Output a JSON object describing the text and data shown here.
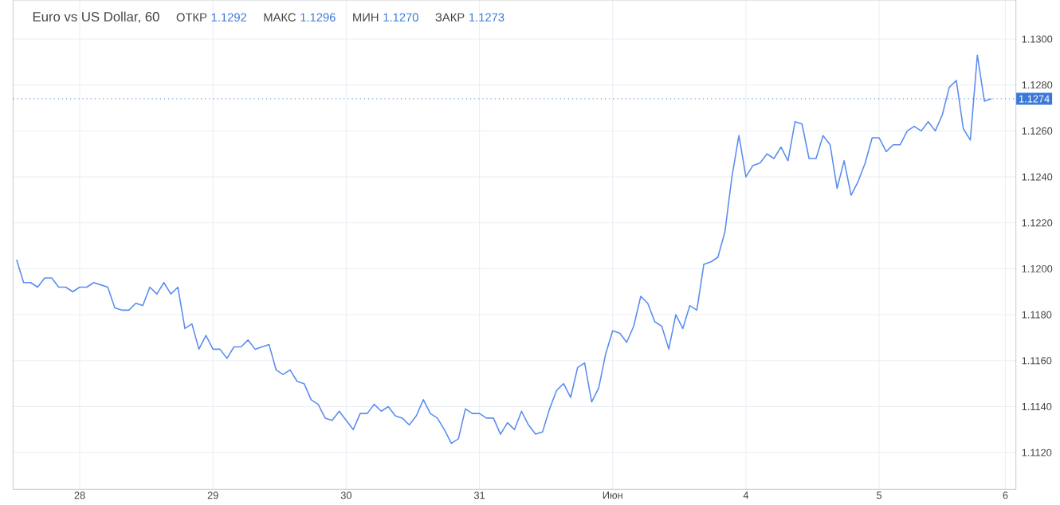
{
  "chart_data": {
    "type": "line",
    "title": "Euro vs US Dollar, 60",
    "annotations": [
      "ОТКР",
      "1.1292",
      "МАКС",
      "1.1296",
      "МИН",
      "1.1270",
      "ЗАКР",
      "1.1273"
    ],
    "categories": [
      null,
      null,
      null,
      null,
      null,
      null,
      null,
      null,
      null,
      "28",
      null,
      null,
      null,
      null,
      null,
      null,
      null,
      null,
      null,
      null,
      null,
      null,
      null,
      null,
      null,
      null,
      null,
      null,
      "29",
      null,
      null,
      null,
      null,
      null,
      null,
      null,
      null,
      null,
      null,
      null,
      null,
      null,
      null,
      null,
      null,
      null,
      null,
      "30",
      null,
      null,
      null,
      null,
      null,
      null,
      null,
      null,
      null,
      null,
      null,
      null,
      null,
      null,
      null,
      null,
      null,
      null,
      "31",
      null,
      null,
      null,
      null,
      null,
      null,
      null,
      null,
      null,
      null,
      null,
      null,
      null,
      null,
      null,
      null,
      null,
      null,
      "Июн",
      null,
      null,
      null,
      null,
      null,
      null,
      null,
      null,
      null,
      null,
      null,
      null,
      null,
      null,
      null,
      null,
      null,
      null,
      "4",
      null,
      null,
      null,
      null,
      null,
      null,
      null,
      null,
      null,
      null,
      null,
      null,
      null,
      null,
      null,
      null,
      null,
      null,
      "5",
      null,
      null,
      null,
      null,
      null,
      null,
      null,
      null,
      null,
      null,
      null,
      null,
      null,
      null,
      null,
      null,
      null,
      "6",
      null
    ],
    "series": [
      {
        "color": "#5b8def",
        "values": [
          1.1204,
          1.1194,
          1.1194,
          1.1192,
          1.1196,
          1.1196,
          1.1192,
          1.1192,
          1.119,
          1.1192,
          1.1192,
          1.1194,
          1.1193,
          1.1192,
          1.1183,
          1.1182,
          1.1182,
          1.1185,
          1.1184,
          1.1192,
          1.1189,
          1.1194,
          1.1189,
          1.1192,
          1.1174,
          1.1176,
          1.1165,
          1.1171,
          1.1165,
          1.1165,
          1.1161,
          1.1166,
          1.1166,
          1.1169,
          1.1165,
          1.1166,
          1.1167,
          1.1156,
          1.1154,
          1.1156,
          1.1151,
          1.115,
          1.1143,
          1.1141,
          1.1135,
          1.1134,
          1.1138,
          1.1134,
          1.113,
          1.1137,
          1.1137,
          1.1141,
          1.1138,
          1.114,
          1.1136,
          1.1135,
          1.1132,
          1.1136,
          1.1143,
          1.1137,
          1.1135,
          1.113,
          1.1124,
          1.1126,
          1.1139,
          1.1137,
          1.1137,
          1.1135,
          1.1135,
          1.1128,
          1.1133,
          1.113,
          1.1138,
          1.1132,
          1.1128,
          1.1129,
          1.1139,
          1.1147,
          1.115,
          1.1144,
          1.1157,
          1.1159,
          1.1142,
          1.1148,
          1.1163,
          1.1173,
          1.1172,
          1.1168,
          1.1175,
          1.1188,
          1.1185,
          1.1177,
          1.1175,
          1.1165,
          1.118,
          1.1174,
          1.1184,
          1.1182,
          1.1202,
          1.1203,
          1.1205,
          1.1216,
          1.124,
          1.1258,
          1.124,
          1.1245,
          1.1246,
          1.125,
          1.1248,
          1.1253,
          1.1247,
          1.1264,
          1.1263,
          1.1248,
          1.1248,
          1.1258,
          1.1254,
          1.1235,
          1.1247,
          1.1232,
          1.1238,
          1.1246,
          1.1257,
          1.1257,
          1.1251,
          1.1254,
          1.1254,
          1.126,
          1.1262,
          1.126,
          1.1264,
          1.126,
          1.1267,
          1.1279,
          1.1282,
          1.1261,
          1.1256,
          1.1293,
          1.1273,
          1.1274,
          null,
          null,
          null
        ]
      }
    ],
    "ylim": [
      1.1104,
      1.1317
    ],
    "yticks": [
      {
        "value": 1.112,
        "label": "1.1120"
      },
      {
        "value": 1.114,
        "label": "1.1140"
      },
      {
        "value": 1.116,
        "label": "1.1160"
      },
      {
        "value": 1.118,
        "label": "1.1180"
      },
      {
        "value": 1.12,
        "label": "1.1200"
      },
      {
        "value": 1.122,
        "label": "1.1220"
      },
      {
        "value": 1.124,
        "label": "1.1240"
      },
      {
        "value": 1.126,
        "label": "1.1260"
      },
      {
        "value": 1.128,
        "label": "1.1280"
      },
      {
        "value": 1.13,
        "label": "1.1300"
      }
    ],
    "ref_lines": [
      {
        "axis": "y",
        "value": 1.1274,
        "label": "1.1274",
        "color": "#3c78d8",
        "line_style": "dotted"
      }
    ],
    "grid": true,
    "marker": "none",
    "line_style": "solid"
  }
}
